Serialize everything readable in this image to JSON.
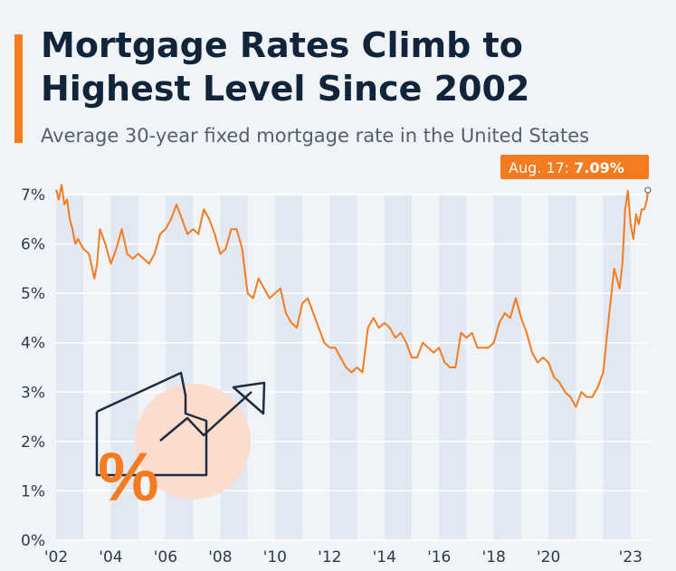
{
  "header": {
    "title": "Mortgage Rates Climb to Highest Level Since 2002",
    "subtitle": "Average 30-year fixed mortgage rate in the United States"
  },
  "colors": {
    "accent": "#f47b20",
    "title": "#12243a",
    "background": "#f0f4f8",
    "band": "#e1e8f1",
    "illustration_circle": "#fcdccc",
    "icon_stroke": "#1f2d40"
  },
  "illustration": {
    "icon": "house-with-rising-arrow-icon",
    "symbol": "%"
  },
  "chart_data": {
    "type": "line",
    "title": "Mortgage Rates Climb to Highest Level Since 2002",
    "subtitle": "Average 30-year fixed mortgage rate in the United States",
    "xlabel": "",
    "ylabel": "",
    "xlim": [
      2002.0,
      2023.7
    ],
    "ylim": [
      0,
      7
    ],
    "grid": true,
    "y_ticks": [
      0,
      1,
      2,
      3,
      4,
      5,
      6,
      7
    ],
    "y_tick_labels": [
      "0%",
      "1%",
      "2%",
      "3%",
      "4%",
      "5%",
      "6%",
      "7%"
    ],
    "x_ticks": [
      2002,
      2004,
      2006,
      2008,
      2010,
      2012,
      2014,
      2016,
      2018,
      2020,
      2023
    ],
    "x_tick_labels": [
      "'02",
      "'04",
      "'06",
      "'08",
      "'10",
      "'12",
      "'14",
      "'16",
      "'18",
      "'20",
      "'23"
    ],
    "series": [
      {
        "color": "#f47b20",
        "x": [
          2002.0,
          2002.1,
          2002.2,
          2002.3,
          2002.4,
          2002.5,
          2002.6,
          2002.7,
          2002.8,
          2002.9,
          2003.0,
          2003.2,
          2003.4,
          2003.5,
          2003.6,
          2003.8,
          2004.0,
          2004.2,
          2004.4,
          2004.6,
          2004.8,
          2005.0,
          2005.2,
          2005.4,
          2005.6,
          2005.8,
          2006.0,
          2006.2,
          2006.4,
          2006.6,
          2006.8,
          2007.0,
          2007.2,
          2007.4,
          2007.6,
          2007.8,
          2008.0,
          2008.2,
          2008.4,
          2008.6,
          2008.8,
          2009.0,
          2009.2,
          2009.4,
          2009.6,
          2009.8,
          2010.0,
          2010.2,
          2010.4,
          2010.6,
          2010.8,
          2011.0,
          2011.2,
          2011.4,
          2011.6,
          2011.8,
          2012.0,
          2012.2,
          2012.4,
          2012.6,
          2012.8,
          2013.0,
          2013.2,
          2013.4,
          2013.6,
          2013.8,
          2014.0,
          2014.2,
          2014.4,
          2014.6,
          2014.8,
          2015.0,
          2015.2,
          2015.4,
          2015.6,
          2015.8,
          2016.0,
          2016.2,
          2016.4,
          2016.6,
          2016.8,
          2017.0,
          2017.2,
          2017.4,
          2017.6,
          2017.8,
          2018.0,
          2018.2,
          2018.4,
          2018.6,
          2018.8,
          2019.0,
          2019.2,
          2019.4,
          2019.6,
          2019.8,
          2020.0,
          2020.2,
          2020.4,
          2020.6,
          2020.8,
          2021.0,
          2021.2,
          2021.4,
          2021.6,
          2021.8,
          2022.0,
          2022.2,
          2022.4,
          2022.5,
          2022.6,
          2022.7,
          2022.8,
          2022.9,
          2023.0,
          2023.1,
          2023.2,
          2023.3,
          2023.4,
          2023.5,
          2023.6,
          2023.63
        ],
        "y": [
          7.1,
          6.9,
          7.2,
          6.8,
          6.9,
          6.5,
          6.3,
          6.0,
          6.1,
          6.0,
          5.9,
          5.8,
          5.3,
          5.6,
          6.3,
          6.0,
          5.6,
          5.9,
          6.3,
          5.8,
          5.7,
          5.8,
          5.7,
          5.6,
          5.8,
          6.2,
          6.3,
          6.5,
          6.8,
          6.5,
          6.2,
          6.3,
          6.2,
          6.7,
          6.5,
          6.2,
          5.8,
          5.9,
          6.3,
          6.3,
          5.9,
          5.0,
          4.9,
          5.3,
          5.1,
          4.9,
          5.0,
          5.1,
          4.6,
          4.4,
          4.3,
          4.8,
          4.9,
          4.6,
          4.3,
          4.0,
          3.9,
          3.9,
          3.7,
          3.5,
          3.4,
          3.5,
          3.4,
          4.3,
          4.5,
          4.3,
          4.4,
          4.3,
          4.1,
          4.2,
          4.0,
          3.7,
          3.7,
          4.0,
          3.9,
          3.8,
          3.9,
          3.6,
          3.5,
          3.5,
          4.2,
          4.1,
          4.2,
          3.9,
          3.9,
          3.9,
          4.0,
          4.4,
          4.6,
          4.5,
          4.9,
          4.5,
          4.2,
          3.8,
          3.6,
          3.7,
          3.6,
          3.3,
          3.2,
          3.0,
          2.9,
          2.7,
          3.0,
          2.9,
          2.9,
          3.1,
          3.4,
          4.5,
          5.5,
          5.3,
          5.1,
          5.6,
          6.7,
          7.08,
          6.4,
          6.1,
          6.6,
          6.4,
          6.7,
          6.7,
          6.9,
          7.09
        ]
      }
    ],
    "annotation": {
      "label": "Aug. 17: ",
      "value": "7.09%",
      "x": 2023.63,
      "y": 7.09
    }
  }
}
